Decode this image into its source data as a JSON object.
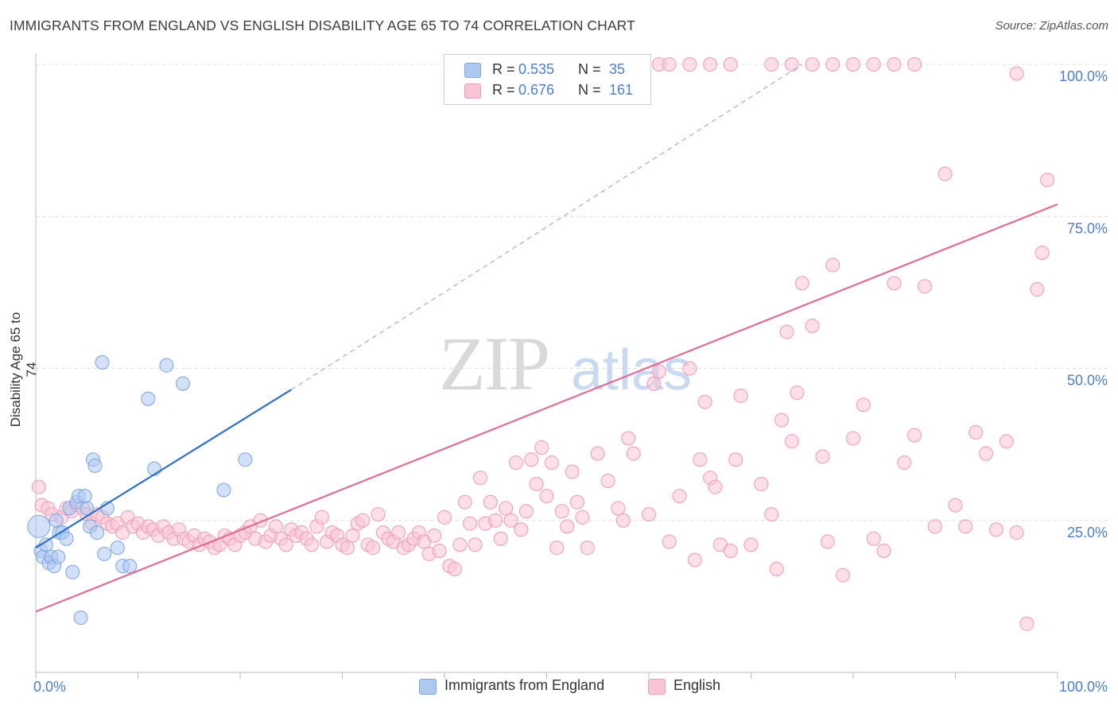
{
  "header": {
    "title": "IMMIGRANTS FROM ENGLAND VS ENGLISH DISABILITY AGE 65 TO 74 CORRELATION CHART",
    "source": "Source: ZipAtlas.com"
  },
  "watermark": {
    "zip": "ZIP",
    "atlas": "atlas"
  },
  "legend": {
    "rows": [
      {
        "r_label": "R =",
        "r_value": "0.535",
        "n_label": "N =",
        "n_value": "35",
        "color": "#adc9f2",
        "border": "#7aa6e0"
      },
      {
        "r_label": "R =",
        "r_value": "0.676",
        "n_label": "N =",
        "n_value": "161",
        "color": "#f9c4d4",
        "border": "#ef9ab5"
      }
    ]
  },
  "bottom_legend": {
    "items": [
      {
        "label": "Immigrants from England",
        "color": "#adc9f2",
        "border": "#7aa6e0"
      },
      {
        "label": "English",
        "color": "#f9c4d4",
        "border": "#ef9ab5"
      }
    ]
  },
  "chart_data": {
    "type": "scatter",
    "title": "IMMIGRANTS FROM ENGLAND VS ENGLISH DISABILITY AGE 65 TO 74 CORRELATION CHART",
    "xlabel": "",
    "ylabel": "Disability Age 65 to 74",
    "xlim": [
      0,
      100
    ],
    "ylim": [
      0,
      100
    ],
    "x_tick_labels": [
      "0.0%",
      "100.0%"
    ],
    "y_tick_labels": [
      "25.0%",
      "50.0%",
      "75.0%",
      "100.0%"
    ],
    "y_ticks": [
      25,
      50,
      75,
      100
    ],
    "grid": true,
    "legend_position": "top-center",
    "series": [
      {
        "name": "Immigrants from England",
        "color": "#adc9f2",
        "stroke": "#7aa6e0",
        "line_color": "#2f6fcc",
        "trend": {
          "x": [
            0,
            25
          ],
          "y": [
            20.5,
            46.5
          ],
          "dashed_to": [
            75,
            100
          ]
        },
        "points": [
          [
            0.3,
            24
          ],
          [
            0.5,
            20
          ],
          [
            0.7,
            19
          ],
          [
            1,
            21
          ],
          [
            1.3,
            18
          ],
          [
            1.5,
            19
          ],
          [
            1.8,
            17.5
          ],
          [
            2,
            25
          ],
          [
            2.3,
            23
          ],
          [
            2.6,
            23
          ],
          [
            3,
            22
          ],
          [
            3.3,
            27
          ],
          [
            3.6,
            16.5
          ],
          [
            4,
            28
          ],
          [
            4.2,
            29
          ],
          [
            4.4,
            9
          ],
          [
            4.8,
            29
          ],
          [
            5,
            27
          ],
          [
            5.3,
            24
          ],
          [
            5.6,
            35
          ],
          [
            5.8,
            34
          ],
          [
            6,
            23
          ],
          [
            6.5,
            51
          ],
          [
            6.7,
            19.5
          ],
          [
            7,
            27
          ],
          [
            8,
            20.5
          ],
          [
            8.5,
            17.5
          ],
          [
            9.2,
            17.5
          ],
          [
            11,
            45
          ],
          [
            11.6,
            33.5
          ],
          [
            12.8,
            50.5
          ],
          [
            14.4,
            47.5
          ],
          [
            18.4,
            30
          ],
          [
            20.5,
            35
          ],
          [
            2.2,
            19
          ]
        ]
      },
      {
        "name": "English",
        "color": "#f9c4d4",
        "stroke": "#ef9ab5",
        "line_color": "#e06c95",
        "trend": {
          "x": [
            0,
            100
          ],
          "y": [
            10,
            77
          ]
        },
        "points": [
          [
            0.3,
            30.5
          ],
          [
            0.6,
            27.5
          ],
          [
            1.2,
            27
          ],
          [
            1.6,
            26
          ],
          [
            2.5,
            25.5
          ],
          [
            3,
            27
          ],
          [
            3.5,
            26.5
          ],
          [
            4,
            27.5
          ],
          [
            4.6,
            27
          ],
          [
            5,
            26
          ],
          [
            5.5,
            24.5
          ],
          [
            6,
            26
          ],
          [
            6.5,
            25.5
          ],
          [
            7,
            24.5
          ],
          [
            7.5,
            24
          ],
          [
            8,
            24.5
          ],
          [
            8.5,
            23
          ],
          [
            9,
            25.5
          ],
          [
            9.5,
            24
          ],
          [
            10,
            24.5
          ],
          [
            10.5,
            23
          ],
          [
            11,
            24
          ],
          [
            11.5,
            23.5
          ],
          [
            12,
            22.5
          ],
          [
            12.5,
            24
          ],
          [
            13,
            23
          ],
          [
            13.5,
            22
          ],
          [
            14,
            23.5
          ],
          [
            14.5,
            22
          ],
          [
            15,
            21.5
          ],
          [
            15.5,
            22.5
          ],
          [
            16,
            21
          ],
          [
            16.5,
            22
          ],
          [
            17,
            21.5
          ],
          [
            17.5,
            20.5
          ],
          [
            18,
            21
          ],
          [
            18.5,
            22.5
          ],
          [
            19,
            22
          ],
          [
            19.5,
            21
          ],
          [
            20,
            22.5
          ],
          [
            20.5,
            23
          ],
          [
            21,
            24
          ],
          [
            21.5,
            22
          ],
          [
            22,
            25
          ],
          [
            22.5,
            21.5
          ],
          [
            23,
            22.5
          ],
          [
            23.5,
            24
          ],
          [
            24,
            22
          ],
          [
            24.5,
            21
          ],
          [
            25,
            23.5
          ],
          [
            25.5,
            22.5
          ],
          [
            26,
            23
          ],
          [
            26.5,
            22
          ],
          [
            27,
            21
          ],
          [
            27.5,
            24
          ],
          [
            28,
            25.5
          ],
          [
            28.5,
            21.5
          ],
          [
            29,
            23
          ],
          [
            29.5,
            22.5
          ],
          [
            30,
            21
          ],
          [
            30.5,
            20.5
          ],
          [
            31,
            22.5
          ],
          [
            31.5,
            24.5
          ],
          [
            32,
            25
          ],
          [
            32.5,
            21
          ],
          [
            33,
            20.5
          ],
          [
            33.5,
            26
          ],
          [
            34,
            23
          ],
          [
            34.5,
            22
          ],
          [
            35,
            21.5
          ],
          [
            35.5,
            23
          ],
          [
            36,
            20.5
          ],
          [
            36.5,
            21
          ],
          [
            37,
            22
          ],
          [
            37.5,
            23
          ],
          [
            38,
            21.5
          ],
          [
            38.5,
            19.5
          ],
          [
            39,
            22.5
          ],
          [
            39.5,
            20
          ],
          [
            40,
            25.5
          ],
          [
            40.5,
            17.5
          ],
          [
            41,
            17
          ],
          [
            41.5,
            21
          ],
          [
            42,
            28
          ],
          [
            42.5,
            24.5
          ],
          [
            43,
            21
          ],
          [
            43.5,
            32
          ],
          [
            44,
            24.5
          ],
          [
            44.5,
            28
          ],
          [
            45,
            25
          ],
          [
            45.5,
            22
          ],
          [
            46,
            27
          ],
          [
            46.5,
            25
          ],
          [
            47,
            34.5
          ],
          [
            47.5,
            23.5
          ],
          [
            48,
            26.5
          ],
          [
            48.5,
            35
          ],
          [
            49,
            31
          ],
          [
            49.5,
            37
          ],
          [
            50,
            29
          ],
          [
            50.5,
            34.5
          ],
          [
            51,
            20.5
          ],
          [
            51.5,
            26.5
          ],
          [
            52,
            24
          ],
          [
            52.5,
            33
          ],
          [
            53,
            28
          ],
          [
            53.5,
            25.5
          ],
          [
            54,
            20.5
          ],
          [
            55,
            36
          ],
          [
            56,
            31.5
          ],
          [
            57,
            27
          ],
          [
            57.5,
            25
          ],
          [
            58,
            38.5
          ],
          [
            58.5,
            36
          ],
          [
            60,
            26
          ],
          [
            60.5,
            47.5
          ],
          [
            61,
            49.5
          ],
          [
            62,
            21.5
          ],
          [
            63,
            29
          ],
          [
            64,
            50
          ],
          [
            64.5,
            18.5
          ],
          [
            65,
            35
          ],
          [
            65.5,
            44.5
          ],
          [
            66,
            32
          ],
          [
            66.5,
            30.5
          ],
          [
            67,
            21
          ],
          [
            68,
            20
          ],
          [
            68.5,
            35
          ],
          [
            69,
            45.5
          ],
          [
            70,
            21
          ],
          [
            71,
            31
          ],
          [
            72,
            26
          ],
          [
            72.5,
            17
          ],
          [
            73,
            41.5
          ],
          [
            73.5,
            56
          ],
          [
            74,
            38
          ],
          [
            74.5,
            46
          ],
          [
            75,
            64
          ],
          [
            76,
            57
          ],
          [
            77,
            35.5
          ],
          [
            77.5,
            21.5
          ],
          [
            78,
            67
          ],
          [
            79,
            16
          ],
          [
            80,
            38.5
          ],
          [
            81,
            44
          ],
          [
            82,
            22
          ],
          [
            83,
            20
          ],
          [
            84,
            64
          ],
          [
            85,
            34.5
          ],
          [
            86,
            39
          ],
          [
            87,
            63.5
          ],
          [
            88,
            24
          ],
          [
            89,
            82
          ],
          [
            90,
            27.5
          ],
          [
            91,
            24
          ],
          [
            92,
            39.5
          ],
          [
            93,
            36
          ],
          [
            94,
            23.5
          ],
          [
            95,
            38
          ],
          [
            96,
            23
          ],
          [
            97,
            8
          ],
          [
            98,
            63
          ],
          [
            99,
            81
          ],
          [
            58,
            100
          ],
          [
            61,
            100
          ],
          [
            62,
            100
          ],
          [
            64,
            100
          ],
          [
            66,
            100
          ],
          [
            68,
            100
          ],
          [
            72,
            100
          ],
          [
            74,
            100
          ],
          [
            76,
            100
          ],
          [
            78,
            100
          ],
          [
            80,
            100
          ],
          [
            82,
            100
          ],
          [
            84,
            100
          ],
          [
            86,
            100
          ],
          [
            96,
            98.5
          ],
          [
            98.5,
            69
          ]
        ]
      }
    ]
  }
}
